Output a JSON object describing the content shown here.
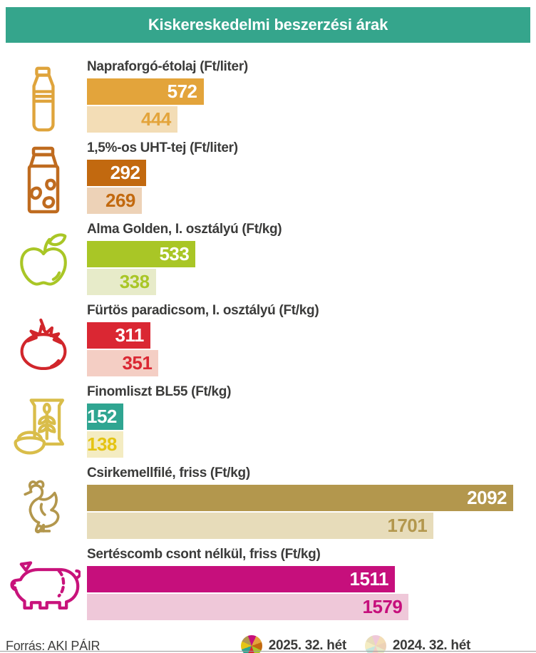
{
  "title": "Kiskereskedelmi beszerzési árak",
  "source": "Forrás: AKI PÁIR",
  "header_color": "#35a58c",
  "text_color": "#3b3b3a",
  "legend": [
    {
      "label": "2025. 32. hét",
      "icon": "pinwheel-2025",
      "colors": [
        "#e3a43b",
        "#c2690f",
        "#a9c626",
        "#da2733",
        "#2fa591",
        "#e4c414",
        "#b3974d",
        "#c60f7c"
      ]
    },
    {
      "label": "2024. 32. hét",
      "icon": "pinwheel-2024",
      "colors": [
        "#f3ddb6",
        "#edd2b7",
        "#e7ebc9",
        "#f4cec4",
        "#c5e6dd",
        "#f4ecc2",
        "#e7dcba",
        "#efc8d9"
      ]
    }
  ],
  "chart_data": {
    "type": "bar",
    "orientation": "horizontal",
    "title": "Kiskereskedelmi beszerzési árak",
    "series_names": [
      "2025. 32. hét",
      "2024. 32. hét"
    ],
    "max_value": 2092,
    "value_unit": "Ft",
    "items": [
      {
        "label": "Napraforgó-étolaj (Ft/liter)",
        "icon": "oil-bottle",
        "value_2025": 572,
        "value_2024": 444,
        "color_2025": "#e3a43b",
        "color_2024": "#f3ddb6",
        "value_2024_text_color": "#e3a43b",
        "icon_color": "#dfa43c"
      },
      {
        "label": "1,5%-os UHT-tej (Ft/liter)",
        "icon": "milk-carton",
        "value_2025": 292,
        "value_2024": 269,
        "color_2025": "#c2690f",
        "color_2024": "#edd2b7",
        "value_2024_text_color": "#c2690f",
        "icon_color": "#bf6b1f"
      },
      {
        "label": "Alma Golden, I. osztályú (Ft/kg)",
        "icon": "apple",
        "value_2025": 533,
        "value_2024": 338,
        "color_2025": "#a9c626",
        "color_2024": "#e7ebc9",
        "value_2024_text_color": "#a9c626",
        "icon_color": "#a9c626"
      },
      {
        "label": "Fürtös paradicsom, I. osztályú (Ft/kg)",
        "icon": "tomato",
        "value_2025": 311,
        "value_2024": 351,
        "color_2025": "#da2733",
        "color_2024": "#f4cec4",
        "value_2024_text_color": "#da2733",
        "icon_color": "#d1262b"
      },
      {
        "label": "Finomliszt BL55 (Ft/kg)",
        "icon": "flour-sack",
        "value_2025": 152,
        "value_2024": 138,
        "color_2025": "#2fa591",
        "color_2024": "#f4ecc2",
        "value_2024_text_color": "#e4c414",
        "icon_color": "#d9bd4a"
      },
      {
        "label": "Csirkemellfilé, friss (Ft/kg)",
        "icon": "chicken",
        "value_2025": 2092,
        "value_2024": 1701,
        "color_2025": "#b3974d",
        "color_2024": "#e7dcba",
        "value_2024_text_color": "#b3974d",
        "icon_color": "#b3974d"
      },
      {
        "label": "Sertéscomb csont nélkül, friss (Ft/kg)",
        "icon": "pig",
        "value_2025": 1511,
        "value_2024": 1579,
        "color_2025": "#c60f7c",
        "color_2024": "#efc8d9",
        "value_2024_text_color": "#c60f7c",
        "icon_color": "#c8137b"
      }
    ]
  }
}
